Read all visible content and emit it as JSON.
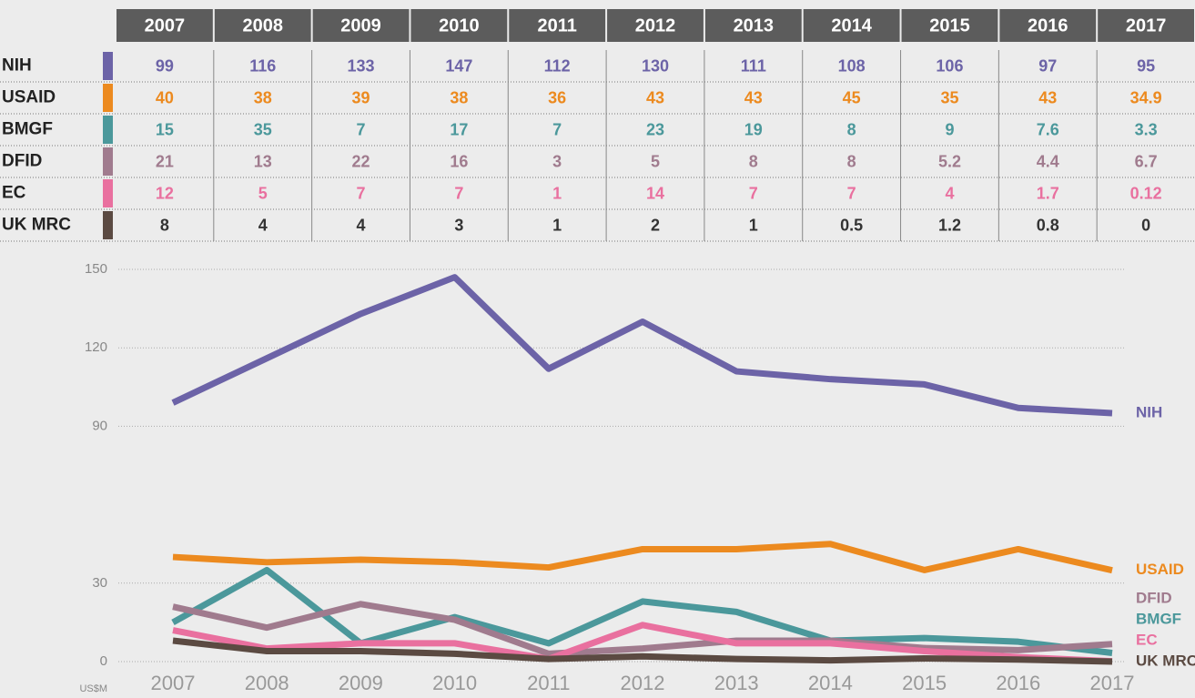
{
  "chart_data": {
    "type": "line",
    "y_label": "US$M",
    "categories": [
      "2007",
      "2008",
      "2009",
      "2010",
      "2011",
      "2012",
      "2013",
      "2014",
      "2015",
      "2016",
      "2017"
    ],
    "series": [
      {
        "name": "NIH",
        "color": "#6c63a7",
        "values": [
          99,
          116,
          133,
          147,
          112,
          130,
          111,
          108,
          106,
          97,
          95
        ]
      },
      {
        "name": "USAID",
        "color": "#ec8a1f",
        "values": [
          40,
          38,
          39,
          38,
          36,
          43,
          43,
          45,
          35,
          43,
          34.9
        ]
      },
      {
        "name": "BMGF",
        "color": "#4b989b",
        "values": [
          15,
          35,
          7,
          17,
          7,
          23,
          19,
          8,
          9,
          7.6,
          3.3
        ]
      },
      {
        "name": "DFID",
        "color": "#a07b8e",
        "values": [
          21,
          13,
          22,
          16,
          3,
          5,
          8,
          8,
          5.2,
          4.4,
          6.7
        ]
      },
      {
        "name": "EC",
        "color": "#e9709f",
        "values": [
          12,
          5,
          7,
          7,
          1,
          14,
          7,
          7,
          4,
          1.7,
          0.12
        ]
      },
      {
        "name": "UK MRC",
        "color": "#5b4a42",
        "values": [
          8,
          4,
          4,
          3,
          1,
          2,
          1,
          0.5,
          1.2,
          0.8,
          0
        ]
      }
    ],
    "ylim": [
      0,
      150
    ],
    "yticks": [
      0,
      30,
      90,
      120,
      150
    ],
    "grid": true
  }
}
